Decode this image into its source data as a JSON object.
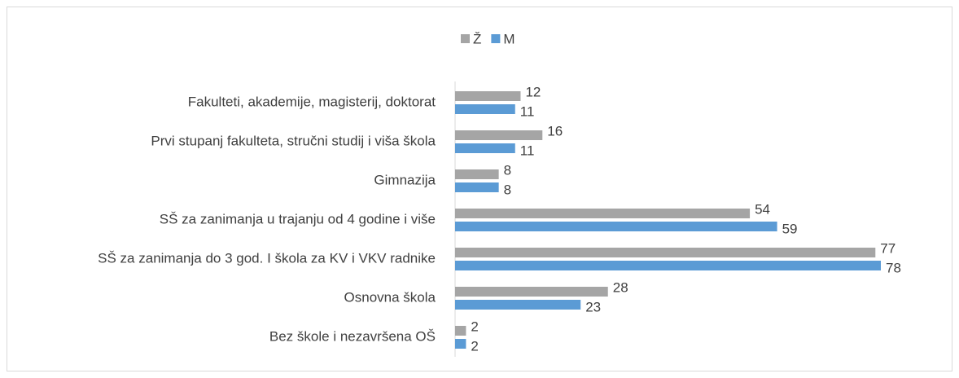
{
  "chart_data": {
    "type": "hbar",
    "categories": [
      "Fakulteti, akademije, magisterij, doktorat",
      "Prvi stupanj fakulteta, stručni studij i viša škola",
      "Gimnazija",
      "SŠ za zanimanja u trajanju od 4 godine i više",
      "SŠ za zanimanja do 3 god. I škola za KV i VKV radnike",
      "Osnovna škola",
      "Bez škole i nezavršena OŠ"
    ],
    "series": [
      {
        "name": "Ž",
        "color": "#a5a5a5",
        "values": [
          12,
          16,
          8,
          54,
          77,
          28,
          2
        ]
      },
      {
        "name": "M",
        "color": "#5b9bd5",
        "values": [
          11,
          11,
          8,
          59,
          78,
          23,
          2
        ]
      }
    ],
    "legend": "top"
  }
}
